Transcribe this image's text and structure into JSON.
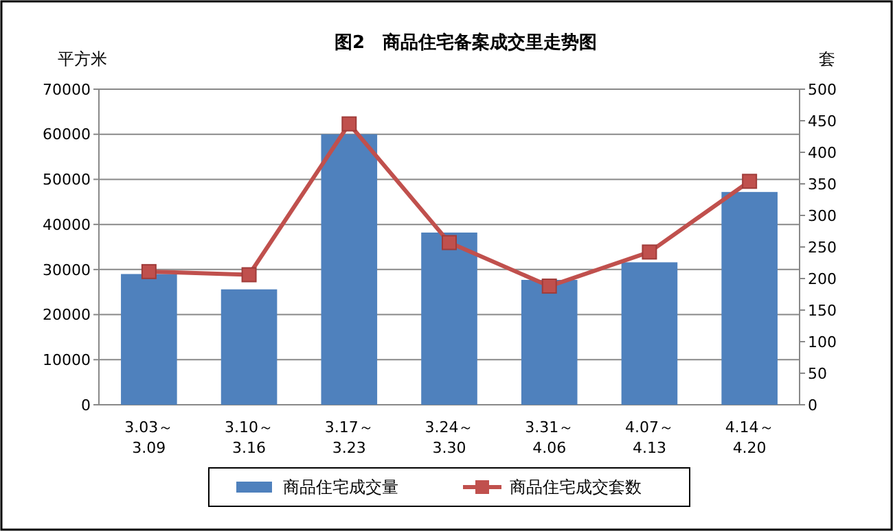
{
  "chart_data": {
    "type": "bar",
    "title": "图2　商品住宅备案成交里走势图",
    "ylabel": "平方米",
    "y2label": "套",
    "categories": [
      "3.03～\n3.09",
      "3.10～\n3.16",
      "3.17～\n3.23",
      "3.24～\n3.30",
      "3.31～\n4.06",
      "4.07～\n4.13",
      "4.14～\n4.20"
    ],
    "series": [
      {
        "name": "商品住宅成交量",
        "color": "#4f81bd",
        "values": [
          29000,
          25600,
          60000,
          38200,
          27700,
          31600,
          47200
        ]
      },
      {
        "name": "商品住宅成交套数",
        "type": "line",
        "axis": "y2",
        "color": "#c0504d",
        "marker": "square",
        "values": [
          211,
          206,
          445,
          257,
          188,
          242,
          354
        ]
      }
    ],
    "ylim": [
      0,
      70000
    ],
    "yticks": [
      0,
      10000,
      20000,
      30000,
      40000,
      50000,
      60000,
      70000
    ],
    "y2lim": [
      0,
      500
    ],
    "y2ticks": [
      0,
      50,
      100,
      150,
      200,
      250,
      300,
      350,
      400,
      450,
      500
    ],
    "grid": "y",
    "legend": "bottom"
  }
}
